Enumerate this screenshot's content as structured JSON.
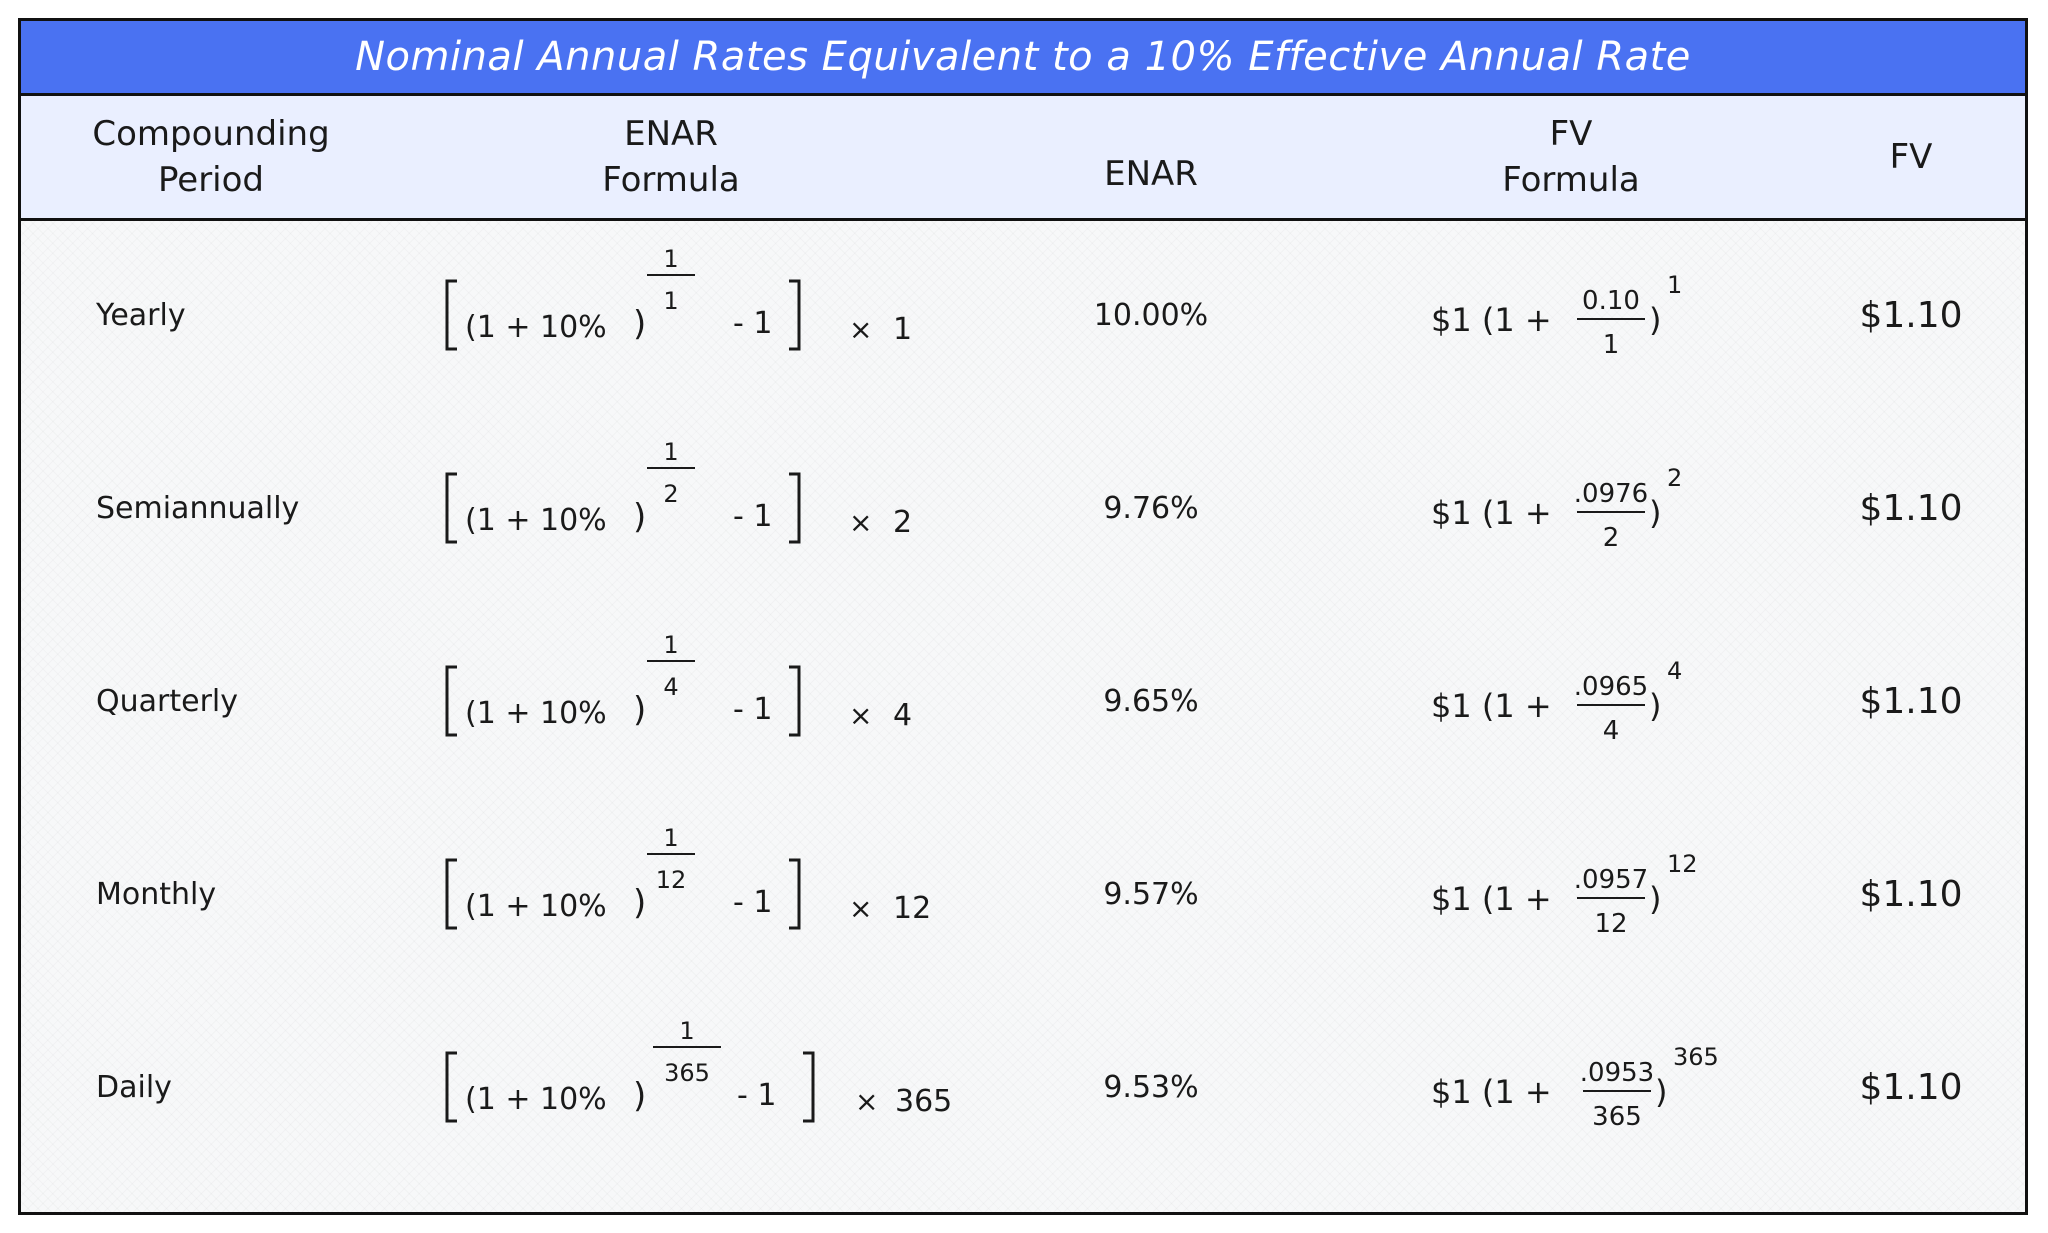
{
  "title": "Nominal Annual Rates Equivalent to a 10% Effective Annual Rate",
  "headers": {
    "period": [
      "Compounding",
      "Period"
    ],
    "enar_formula": [
      "ENAR",
      "Formula"
    ],
    "enar": "ENAR",
    "fv_formula": [
      "FV",
      "Formula"
    ],
    "fv": "FV"
  },
  "formula_parts": {
    "one_plus": "(1 + 10%",
    "close_paren": ")",
    "exp_num": "1",
    "minus_one": "- 1",
    "times": "×",
    "fv_prefix": "$1 (1 +",
    "fv_close": ")"
  },
  "rows": [
    {
      "period": "Yearly",
      "n": "1",
      "enar": "10.00%",
      "rate": "0.10",
      "fv": "$1.10"
    },
    {
      "period": "Semiannually",
      "n": "2",
      "enar": "9.76%",
      "rate": ".0976",
      "fv": "$1.10"
    },
    {
      "period": "Quarterly",
      "n": "4",
      "enar": "9.65%",
      "rate": ".0965",
      "fv": "$1.10"
    },
    {
      "period": "Monthly",
      "n": "12",
      "enar": "9.57%",
      "rate": ".0957",
      "fv": "$1.10"
    },
    {
      "period": "Daily",
      "n": "365",
      "enar": "9.53%",
      "rate": ".0953",
      "fv": "$1.10"
    }
  ],
  "colors": {
    "title_bg": "#4a72f2",
    "header_bg": "#eaefff",
    "border": "#111111"
  }
}
